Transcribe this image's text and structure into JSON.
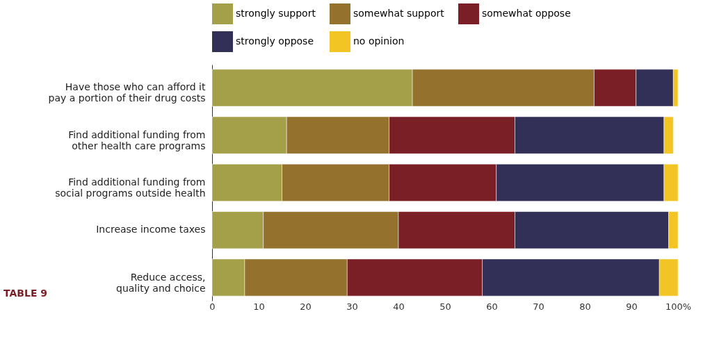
{
  "chart_data": {
    "type": "bar",
    "orientation": "horizontal",
    "stacked": true,
    "categories": [
      "Have those who can afford it\npay a portion of their drug costs",
      "Find additional funding from\nother health care programs",
      "Find additional funding from\nsocial programs outside health",
      "Increase income taxes",
      "Reduce access,\nquality and choice"
    ],
    "series": [
      {
        "name": "strongly support",
        "color": "#a4a04a",
        "values": [
          43,
          16,
          15,
          11,
          7
        ]
      },
      {
        "name": "somewhat support",
        "color": "#94722e",
        "values": [
          39,
          22,
          23,
          29,
          22
        ]
      },
      {
        "name": "somewhat oppose",
        "color": "#7b1f26",
        "values": [
          9,
          27,
          23,
          25,
          29
        ]
      },
      {
        "name": "strongly oppose",
        "color": "#333058",
        "values": [
          8,
          32,
          36,
          33,
          38
        ]
      },
      {
        "name": "no opinion",
        "color": "#f2c524",
        "values": [
          1,
          2,
          3,
          2,
          4
        ]
      }
    ],
    "xlim": [
      0,
      100
    ],
    "xticks": [
      0,
      10,
      20,
      30,
      40,
      50,
      60,
      70,
      80,
      90,
      {
        "value": 100,
        "label": "100%"
      }
    ],
    "grid": false,
    "legend": "top",
    "annotations": [
      "TABLE 9"
    ]
  }
}
